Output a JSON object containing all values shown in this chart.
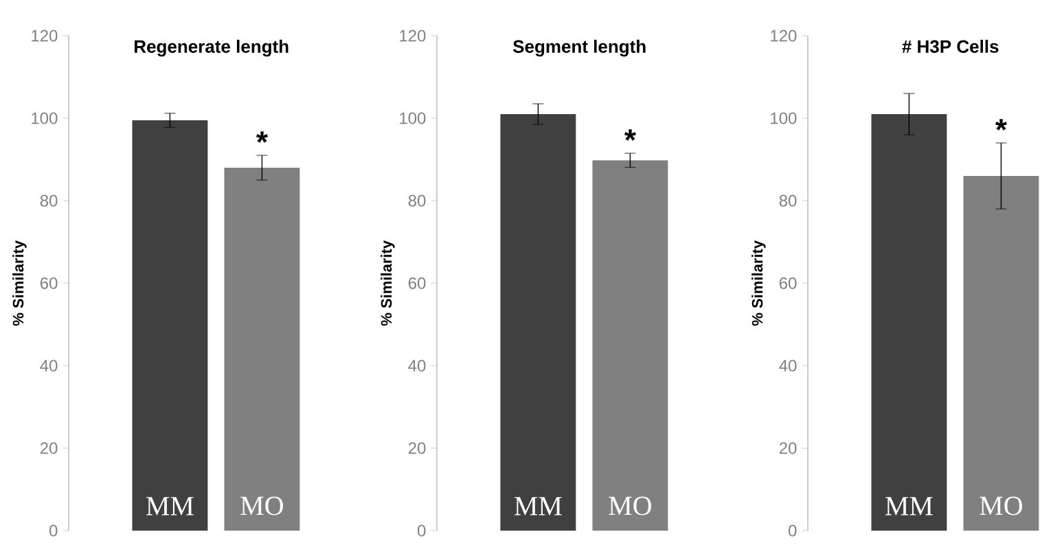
{
  "chart_data": [
    {
      "type": "bar",
      "title": "Regenerate length",
      "ylabel": "% Similarity",
      "categories": [
        "MM",
        "MO"
      ],
      "values": [
        99.5,
        88
      ],
      "errors": [
        1.7,
        3
      ],
      "colors": [
        "#404040",
        "#808080"
      ],
      "ylim": [
        0,
        120
      ],
      "yticks": [
        0,
        20,
        40,
        60,
        80,
        100,
        120
      ],
      "annotations": [
        "*"
      ]
    },
    {
      "type": "bar",
      "title": "Segment length",
      "ylabel": "% Similarity",
      "categories": [
        "MM",
        "MO"
      ],
      "values": [
        101,
        89.8
      ],
      "errors": [
        2.5,
        1.7
      ],
      "colors": [
        "#404040",
        "#808080"
      ],
      "ylim": [
        0,
        120
      ],
      "yticks": [
        0,
        20,
        40,
        60,
        80,
        100,
        120
      ],
      "annotations": [
        "*"
      ]
    },
    {
      "type": "bar",
      "title": "# H3P Cells",
      "ylabel": "% Similarity",
      "categories": [
        "MM",
        "MO"
      ],
      "values": [
        101,
        86
      ],
      "errors": [
        5,
        8
      ],
      "colors": [
        "#404040",
        "#808080"
      ],
      "ylim": [
        0,
        120
      ],
      "yticks": [
        0,
        20,
        40,
        60,
        80,
        100,
        120
      ],
      "annotations": [
        "*"
      ]
    }
  ]
}
